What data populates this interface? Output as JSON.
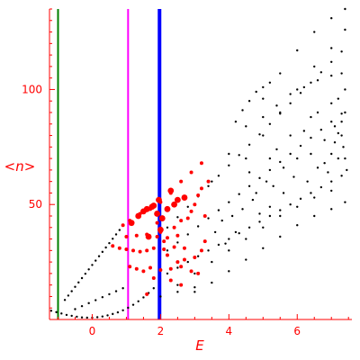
{
  "chart_data": {
    "type": "scatter",
    "title": "",
    "xlabel": "E",
    "ylabel": "<n>",
    "xlim": [
      -1.25,
      7.6
    ],
    "ylim": [
      0,
      135
    ],
    "xticks": [
      0,
      2,
      4,
      6
    ],
    "yticks": [
      50,
      100
    ],
    "axis_color": "#ff0000",
    "vertical_lines": [
      {
        "x": -1.0,
        "color": "#008000",
        "width": 2
      },
      {
        "x": 1.05,
        "color": "#ff00ff",
        "width": 2
      },
      {
        "x": 1.97,
        "color": "#0000ff",
        "width": 4
      }
    ],
    "series": [
      {
        "color": "#000000",
        "marker_size": 1.2,
        "points": [
          [
            -1.2,
            3.8
          ],
          [
            -1.05,
            3.2
          ],
          [
            -0.9,
            2.6
          ],
          [
            -0.75,
            2.0
          ],
          [
            -0.6,
            1.6
          ],
          [
            -0.45,
            1.2
          ],
          [
            -0.3,
            0.9
          ],
          [
            -0.15,
            0.8
          ],
          [
            0.0,
            0.8
          ],
          [
            0.15,
            1.0
          ],
          [
            0.3,
            1.3
          ],
          [
            0.45,
            1.8
          ],
          [
            0.6,
            2.4
          ],
          [
            0.75,
            3.1
          ],
          [
            0.9,
            4.0
          ],
          [
            1.05,
            5.1
          ],
          [
            1.2,
            6.4
          ],
          [
            1.35,
            7.9
          ],
          [
            1.5,
            9.6
          ],
          [
            1.65,
            11.5
          ],
          [
            1.8,
            13.6
          ],
          [
            -0.8,
            8.5
          ],
          [
            -0.7,
            10.4
          ],
          [
            -0.6,
            12.3
          ],
          [
            -0.5,
            14.2
          ],
          [
            -0.4,
            16.1
          ],
          [
            -0.3,
            18.0
          ],
          [
            -0.2,
            19.9
          ],
          [
            -0.1,
            21.8
          ],
          [
            0.0,
            23.7
          ],
          [
            0.1,
            25.6
          ],
          [
            0.2,
            27.5
          ],
          [
            0.3,
            29.4
          ],
          [
            0.4,
            31.3
          ],
          [
            0.5,
            33.2
          ],
          [
            0.6,
            35.1
          ],
          [
            0.7,
            37.0
          ],
          [
            0.8,
            38.9
          ],
          [
            -0.5,
            4.5
          ],
          [
            -0.3,
            5.8
          ],
          [
            -0.1,
            7.1
          ],
          [
            0.1,
            8.4
          ],
          [
            0.3,
            9.7
          ],
          [
            0.5,
            11.0
          ],
          [
            0.7,
            12.3
          ],
          [
            0.9,
            13.6
          ],
          [
            2.2,
            20.0
          ],
          [
            2.5,
            22.5
          ],
          [
            2.8,
            25.0
          ],
          [
            3.1,
            27.5
          ],
          [
            3.4,
            30.0
          ],
          [
            3.7,
            32.5
          ],
          [
            4.0,
            35.0
          ],
          [
            4.3,
            37.5
          ],
          [
            4.6,
            40.0
          ],
          [
            4.9,
            42.5
          ],
          [
            5.2,
            45.0
          ],
          [
            5.5,
            47.5
          ],
          [
            5.8,
            50.0
          ],
          [
            6.1,
            52.5
          ],
          [
            6.4,
            55.0
          ],
          [
            6.7,
            57.5
          ],
          [
            7.0,
            60.0
          ],
          [
            7.3,
            62.5
          ],
          [
            2.2,
            30.0
          ],
          [
            2.5,
            33.5
          ],
          [
            2.8,
            37.0
          ],
          [
            3.1,
            40.5
          ],
          [
            3.4,
            44.0
          ],
          [
            3.7,
            47.5
          ],
          [
            4.0,
            51.0
          ],
          [
            4.3,
            54.5
          ],
          [
            4.6,
            58.0
          ],
          [
            4.9,
            61.5
          ],
          [
            5.2,
            65.0
          ],
          [
            5.5,
            68.5
          ],
          [
            5.8,
            72.0
          ],
          [
            6.1,
            75.5
          ],
          [
            6.4,
            79.0
          ],
          [
            6.7,
            82.5
          ],
          [
            7.0,
            86.0
          ],
          [
            7.3,
            89.5
          ],
          [
            2.2,
            40.0
          ],
          [
            2.5,
            44.5
          ],
          [
            2.8,
            49.0
          ],
          [
            3.1,
            53.5
          ],
          [
            3.4,
            58.0
          ],
          [
            3.7,
            62.5
          ],
          [
            4.0,
            67.0
          ],
          [
            4.3,
            71.5
          ],
          [
            4.6,
            76.0
          ],
          [
            4.9,
            80.5
          ],
          [
            5.2,
            85.0
          ],
          [
            5.5,
            89.5
          ],
          [
            5.8,
            94.0
          ],
          [
            6.1,
            98.5
          ],
          [
            6.4,
            103.0
          ],
          [
            6.7,
            107.5
          ],
          [
            7.0,
            112.0
          ],
          [
            7.3,
            116.5
          ],
          [
            3.5,
            60.0
          ],
          [
            4.0,
            72.0
          ],
          [
            4.5,
            84.0
          ],
          [
            5.0,
            96.0
          ],
          [
            5.5,
            107.0
          ],
          [
            6.0,
            117.0
          ],
          [
            6.5,
            125.0
          ],
          [
            7.0,
            131.0
          ],
          [
            7.4,
            135.0
          ],
          [
            4.5,
            70.0
          ],
          [
            5.0,
            80.0
          ],
          [
            5.5,
            90.0
          ],
          [
            6.0,
            100.0
          ],
          [
            6.5,
            110.0
          ],
          [
            7.0,
            118.0
          ],
          [
            7.4,
            126.0
          ],
          [
            5.0,
            88.0
          ],
          [
            5.4,
            93.0
          ],
          [
            5.8,
            98.0
          ],
          [
            6.2,
            101.0
          ],
          [
            6.6,
            104.0
          ],
          [
            7.0,
            106.0
          ],
          [
            7.3,
            107.0
          ],
          [
            4.2,
            86.0
          ],
          [
            4.4,
            91.0
          ],
          [
            4.6,
            95.0
          ],
          [
            4.8,
            99.0
          ],
          [
            5.0,
            101.0
          ],
          [
            5.2,
            103.0
          ],
          [
            6.8,
            68.0
          ],
          [
            7.0,
            72.0
          ],
          [
            7.1,
            77.0
          ],
          [
            7.2,
            81.0
          ],
          [
            7.3,
            86.0
          ],
          [
            7.4,
            90.0
          ],
          [
            7.3,
            80.0
          ],
          [
            7.35,
            75.0
          ],
          [
            7.4,
            70.0
          ],
          [
            7.45,
            65.0
          ],
          [
            2.5,
            15.0
          ],
          [
            3.0,
            20.0
          ],
          [
            3.5,
            25.0
          ],
          [
            4.0,
            30.0
          ],
          [
            4.5,
            35.0
          ],
          [
            5.0,
            40.0
          ],
          [
            5.5,
            45.0
          ],
          [
            6.0,
            49.0
          ],
          [
            6.5,
            53.0
          ],
          [
            7.0,
            56.0
          ],
          [
            3.0,
            12.0
          ],
          [
            3.5,
            16.0
          ],
          [
            4.0,
            21.0
          ],
          [
            4.5,
            26.0
          ],
          [
            5.0,
            31.0
          ],
          [
            5.5,
            36.0
          ],
          [
            6.0,
            41.0
          ],
          [
            6.5,
            45.0
          ],
          [
            7.0,
            48.0
          ],
          [
            7.4,
            51.0
          ],
          [
            2.0,
            10.0
          ],
          [
            2.5,
            12.0
          ],
          [
            3.0,
            14.0
          ],
          [
            5.1,
            60.0
          ],
          [
            5.3,
            58.0
          ],
          [
            5.6,
            55.0
          ],
          [
            5.9,
            62.0
          ],
          [
            6.3,
            60.0
          ],
          [
            6.6,
            66.0
          ],
          [
            6.9,
            64.0
          ],
          [
            7.2,
            70.0
          ],
          [
            4.7,
            52.0
          ],
          [
            4.9,
            46.0
          ],
          [
            5.2,
            49.0
          ],
          [
            5.6,
            66.0
          ],
          [
            6.0,
            70.0
          ],
          [
            6.4,
            72.0
          ],
          [
            6.8,
            78.0
          ],
          [
            7.1,
            84.0
          ],
          [
            3.8,
            43.0
          ],
          [
            4.1,
            45.0
          ],
          [
            4.4,
            48.0
          ],
          [
            3.6,
            38.0
          ],
          [
            3.9,
            33.0
          ],
          [
            4.2,
            38.0
          ],
          [
            4.8,
            55.0
          ],
          [
            5.4,
            74.0
          ],
          [
            6.2,
            82.0
          ],
          [
            6.6,
            90.0
          ],
          [
            7.2,
            96.0
          ],
          [
            4.6,
            64.0
          ],
          [
            5.2,
            70.0
          ],
          [
            5.8,
            80.0
          ],
          [
            6.4,
            88.0
          ],
          [
            7.0,
            94.0
          ],
          [
            7.4,
            100.0
          ]
        ]
      },
      {
        "color": "#ff0000",
        "marker_size": 2.0,
        "points": [
          [
            0.6,
            32.0
          ],
          [
            0.8,
            31.0
          ],
          [
            1.0,
            30.5
          ],
          [
            1.2,
            30.0
          ],
          [
            1.4,
            29.5
          ],
          [
            1.6,
            30.0
          ],
          [
            1.8,
            31.0
          ],
          [
            2.1,
            30.5
          ],
          [
            2.4,
            31.5
          ],
          [
            2.7,
            31.0
          ],
          [
            0.9,
            41.0
          ],
          [
            1.1,
            43.0
          ],
          [
            1.4,
            46.0
          ],
          [
            1.7,
            48.0
          ],
          [
            2.0,
            51.0
          ],
          [
            2.3,
            55.0
          ],
          [
            2.6,
            60.0
          ],
          [
            2.9,
            64.0
          ],
          [
            3.2,
            68.0
          ],
          [
            1.0,
            36.0
          ],
          [
            1.3,
            36.5
          ],
          [
            1.6,
            37.0
          ],
          [
            1.9,
            36.0
          ],
          [
            2.2,
            35.5
          ],
          [
            2.5,
            36.5
          ],
          [
            1.1,
            23.0
          ],
          [
            1.3,
            22.0
          ],
          [
            1.5,
            21.0
          ],
          [
            1.7,
            22.5
          ],
          [
            2.0,
            21.5
          ],
          [
            2.3,
            22.0
          ],
          [
            2.6,
            23.0
          ],
          [
            2.9,
            21.0
          ],
          [
            3.1,
            20.0
          ],
          [
            1.9,
            42.0
          ],
          [
            2.0,
            38.0
          ],
          [
            2.1,
            34.0
          ],
          [
            2.2,
            28.0
          ],
          [
            1.8,
            18.0
          ],
          [
            2.4,
            40.0
          ],
          [
            2.6,
            43.0
          ],
          [
            2.8,
            44.0
          ],
          [
            2.9,
            47.0
          ],
          [
            3.0,
            50.0
          ],
          [
            3.1,
            54.0
          ],
          [
            3.2,
            57.0
          ],
          [
            3.3,
            45.0
          ],
          [
            3.4,
            60.0
          ],
          [
            2.7,
            26.0
          ],
          [
            2.5,
            25.0
          ],
          [
            2.3,
            17.0
          ],
          [
            2.6,
            15.0
          ],
          [
            1.6,
            11.0
          ],
          [
            3.0,
            27.0
          ],
          [
            3.2,
            30.0
          ],
          [
            3.3,
            34.0
          ]
        ]
      },
      {
        "color": "#ff0000",
        "marker_size": 3.4,
        "points": [
          [
            1.15,
            42.0
          ],
          [
            1.35,
            45.0
          ],
          [
            1.6,
            48.0
          ],
          [
            1.8,
            49.5
          ],
          [
            1.95,
            52.0
          ],
          [
            1.75,
            49.0
          ],
          [
            1.5,
            47.0
          ],
          [
            1.9,
            46.0
          ],
          [
            2.0,
            39.0
          ],
          [
            2.2,
            48.0
          ],
          [
            2.4,
            50.0
          ],
          [
            2.7,
            53.0
          ],
          [
            1.65,
            36.0
          ],
          [
            2.05,
            44.0
          ],
          [
            2.3,
            56.0
          ],
          [
            2.5,
            52.0
          ]
        ]
      }
    ]
  }
}
